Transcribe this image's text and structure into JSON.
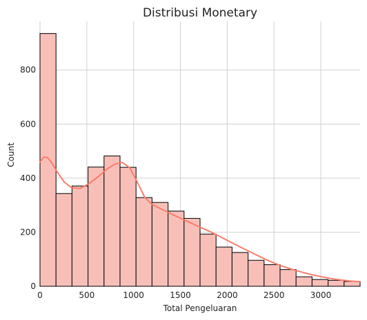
{
  "chart_data": {
    "type": "bar",
    "title": "Distribusi Monetary",
    "xlabel": "Total Pengeluaran",
    "ylabel": "Count",
    "xlim": [
      0,
      3420
    ],
    "ylim": [
      0,
      980
    ],
    "x_ticks": [
      0,
      500,
      1000,
      1500,
      2000,
      2500,
      3000
    ],
    "y_ticks": [
      0,
      200,
      400,
      600,
      800
    ],
    "grid": true,
    "bins": [
      {
        "x0": 0,
        "x1": 171,
        "value": 935
      },
      {
        "x0": 171,
        "x1": 342,
        "value": 343
      },
      {
        "x0": 342,
        "x1": 513,
        "value": 371
      },
      {
        "x0": 513,
        "x1": 684,
        "value": 441
      },
      {
        "x0": 684,
        "x1": 855,
        "value": 482
      },
      {
        "x0": 855,
        "x1": 1026,
        "value": 440
      },
      {
        "x0": 1026,
        "x1": 1197,
        "value": 328
      },
      {
        "x0": 1197,
        "x1": 1368,
        "value": 310
      },
      {
        "x0": 1368,
        "x1": 1539,
        "value": 278
      },
      {
        "x0": 1539,
        "x1": 1710,
        "value": 251
      },
      {
        "x0": 1710,
        "x1": 1881,
        "value": 193
      },
      {
        "x0": 1881,
        "x1": 2052,
        "value": 145
      },
      {
        "x0": 2052,
        "x1": 2223,
        "value": 125
      },
      {
        "x0": 2223,
        "x1": 2394,
        "value": 96
      },
      {
        "x0": 2394,
        "x1": 2565,
        "value": 80
      },
      {
        "x0": 2565,
        "x1": 2736,
        "value": 62
      },
      {
        "x0": 2736,
        "x1": 2907,
        "value": 35
      },
      {
        "x0": 2907,
        "x1": 3078,
        "value": 25
      },
      {
        "x0": 3078,
        "x1": 3249,
        "value": 22
      },
      {
        "x0": 3249,
        "x1": 3420,
        "value": 18
      }
    ],
    "kde": {
      "x": [
        0,
        40,
        80,
        120,
        180,
        260,
        340,
        430,
        520,
        620,
        720,
        800,
        880,
        960,
        1040,
        1120,
        1200,
        1300,
        1400,
        1500,
        1600,
        1700,
        1800,
        1900,
        2000,
        2100,
        2200,
        2300,
        2400,
        2500,
        2600,
        2700,
        2800,
        2900,
        3000,
        3100,
        3200,
        3300,
        3420
      ],
      "y": [
        460,
        478,
        476,
        460,
        425,
        385,
        364,
        362,
        379,
        405,
        435,
        452,
        458,
        438,
        385,
        328,
        302,
        285,
        268,
        252,
        236,
        220,
        205,
        188,
        170,
        152,
        135,
        118,
        101,
        86,
        73,
        62,
        52,
        43,
        36,
        29,
        24,
        20,
        17
      ]
    },
    "colors": {
      "bar_fill": "#f8bfb8",
      "bar_edge": "#111111",
      "kde_line": "#f87c6b",
      "grid": "#d0d0d0"
    }
  }
}
